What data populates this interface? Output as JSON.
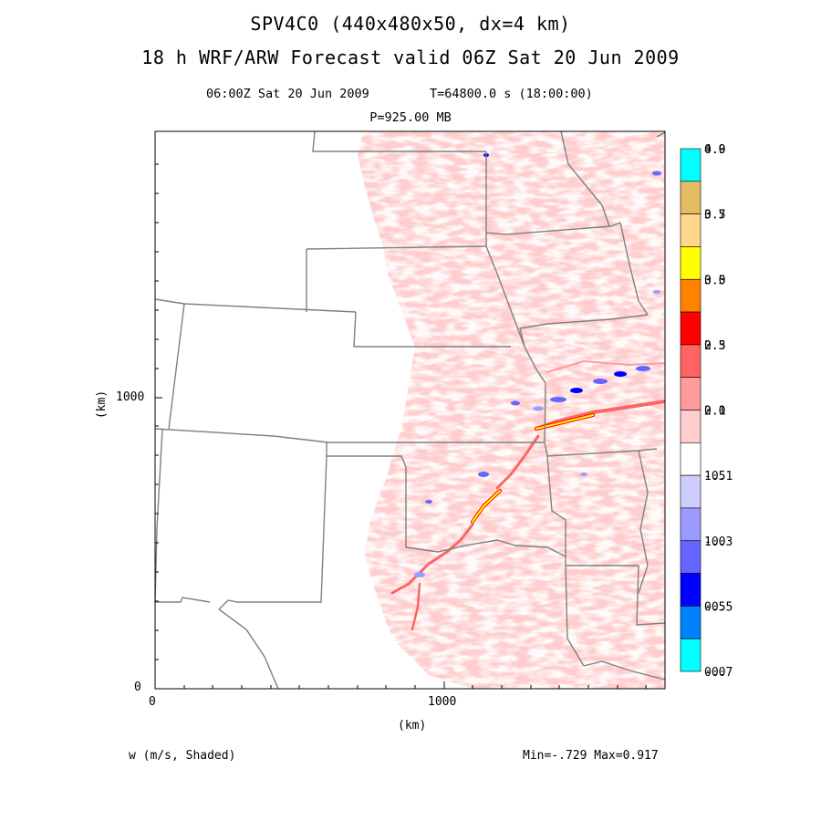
{
  "header": {
    "title_line1": "SPV4C0 (440x480x50, dx=4 km)",
    "title_line2": "18 h WRF/ARW Forecast valid 06Z Sat 20 Jun 2009",
    "valid_time": "06:00Z Sat 20 Jun 2009",
    "sim_time": "T=64800.0 s (18:00:00)",
    "level": "P=925.00 MB"
  },
  "axes": {
    "x_label": "(km)",
    "y_label": "(km)",
    "x_ticks": [
      "0",
      "1000"
    ],
    "y_ticks": [
      "0",
      "1000"
    ]
  },
  "footer": {
    "field_label": "w (m/s, Shaded)",
    "stats": "Min=-.729 Max=0.917"
  },
  "colorbar": {
    "bins": [
      {
        "color": "#00ffff"
      },
      {
        "color": "#e3bc64"
      },
      {
        "color": "#ffd78c"
      },
      {
        "color": "#ffff00"
      },
      {
        "color": "#ff8200"
      },
      {
        "color": "#ff0000"
      },
      {
        "color": "#ff6464"
      },
      {
        "color": "#ff9b9b"
      },
      {
        "color": "#ffcdcd"
      },
      {
        "color": "#ffffff"
      },
      {
        "color": "#cdcdff"
      },
      {
        "color": "#9b9bff"
      },
      {
        "color": "#6464ff"
      },
      {
        "color": "#0000ff"
      },
      {
        "color": "#0082ff"
      },
      {
        "color": "#00ffff"
      }
    ],
    "labels": [
      {
        "a": "4.0",
        "b": "0.9"
      },
      {
        "a": "3.5",
        "b": "0.7"
      },
      {
        "a": "3.0",
        "b": "0.5"
      },
      {
        "a": "2.5",
        "b": "0.3"
      },
      {
        "a": "2.0",
        "b": "0.1"
      },
      {
        "a": "1.5",
        "b": "-0.1"
      },
      {
        "a": "1.0",
        "b": "-0.3"
      },
      {
        "a": "0.5",
        "b": "-0.5"
      },
      {
        "a": "0.0",
        "b": "-0.7"
      }
    ]
  }
}
